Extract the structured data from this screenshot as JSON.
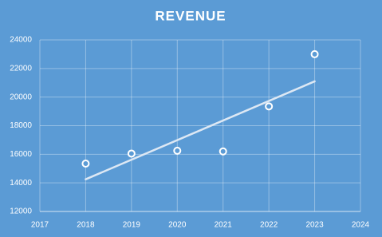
{
  "chart_data": {
    "type": "scatter",
    "title": "REVENUE",
    "x": [
      2018,
      2019,
      2020,
      2021,
      2022,
      2023
    ],
    "values": [
      15350,
      16050,
      16250,
      16200,
      19350,
      23000
    ],
    "trendline": {
      "x": [
        2018,
        2023
      ],
      "values": [
        14250,
        21100
      ]
    },
    "color": "#ffffff",
    "xlim": [
      2017,
      2024
    ],
    "xticks": [
      2017,
      2018,
      2019,
      2020,
      2021,
      2022,
      2023,
      2024
    ],
    "ylim": [
      12000,
      24000
    ],
    "yticks": [
      12000,
      14000,
      16000,
      18000,
      20000,
      22000,
      24000
    ],
    "grid": true
  }
}
